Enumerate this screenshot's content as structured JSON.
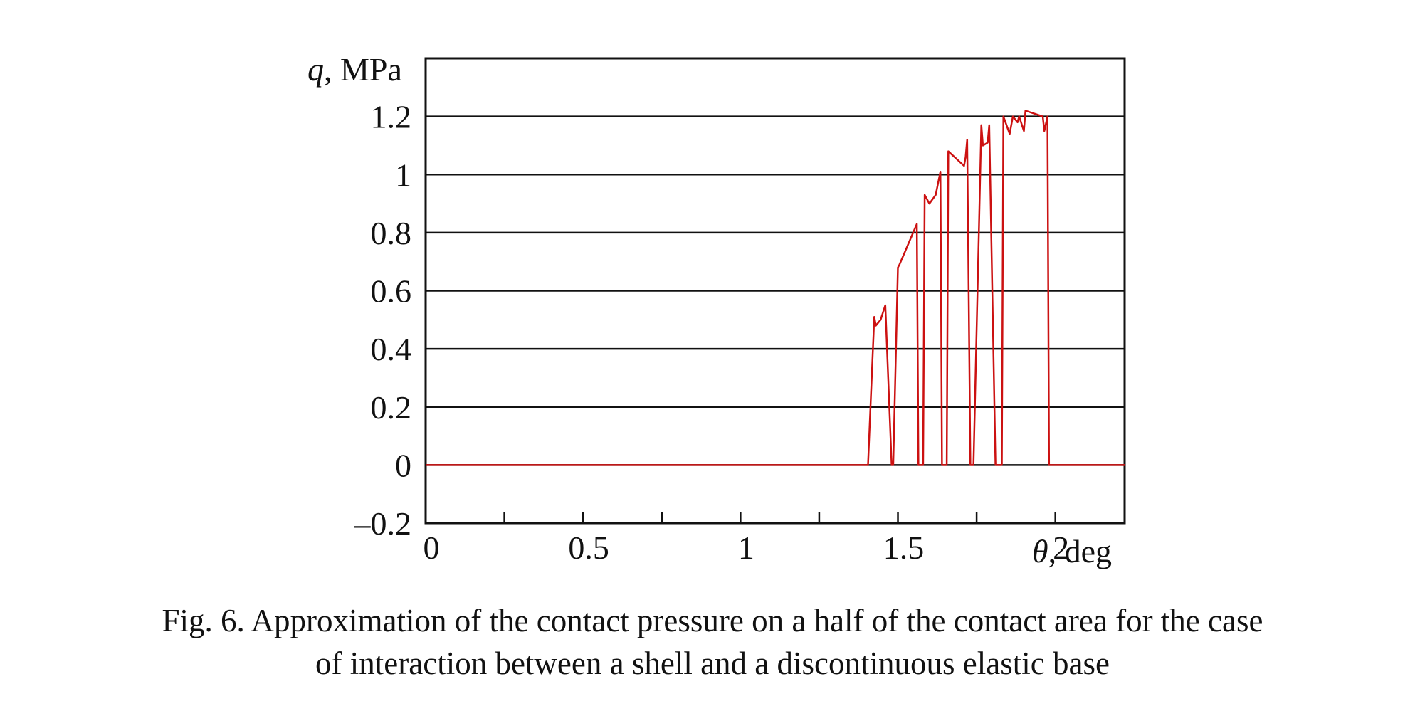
{
  "chart_data": {
    "type": "line",
    "ylabel": {
      "symbol": "q",
      "unit": ", MPa"
    },
    "xlabel": {
      "symbol": "θ",
      "unit": ", deg"
    },
    "xlim": [
      0,
      2.22
    ],
    "ylim": [
      -0.2,
      1.4
    ],
    "x_ticks": [
      0.25,
      0.5,
      0.75,
      1,
      1.25,
      1.5,
      1.75,
      2,
      2.25
    ],
    "x_tick_labels": [
      {
        "x": 0,
        "label": "0"
      },
      {
        "x": 0.5,
        "label": "0.5"
      },
      {
        "x": 1,
        "label": "1"
      },
      {
        "x": 1.5,
        "label": "1.5"
      },
      {
        "x": 2,
        "label": "2"
      }
    ],
    "y_ticks": [
      -0.2,
      0,
      0.2,
      0.4,
      0.6,
      0.8,
      1,
      1.2
    ],
    "y_tick_labels": [
      "–0.2",
      "0",
      "0.2",
      "0.4",
      "0.6",
      "0.8",
      "1",
      "1.2"
    ],
    "grid": "horizontal",
    "line_color": "#cc1111",
    "series": [
      {
        "x": [
          0,
          1.4,
          1.405,
          1.425,
          1.43,
          1.445,
          1.46,
          1.48,
          1.485,
          1.5,
          1.505,
          1.56,
          1.565,
          1.58,
          1.585,
          1.6,
          1.62,
          1.635,
          1.64,
          1.655,
          1.66,
          1.71,
          1.715,
          1.72,
          1.73,
          1.74,
          1.765,
          1.77,
          1.785,
          1.79,
          1.81,
          1.815,
          1.83,
          1.835,
          1.855,
          1.865,
          1.88,
          1.885,
          1.9,
          1.905,
          1.96,
          1.965,
          1.975,
          1.98,
          1.995,
          2.005,
          2.025,
          2.03,
          2.06,
          2.065,
          2.12,
          2.125,
          2.135,
          2.14,
          2.155,
          2.16,
          2.175,
          2.2,
          2.205,
          2.21,
          2.22
        ],
        "y": [
          0,
          0,
          0,
          0.51,
          0.48,
          0.5,
          0.55,
          0,
          0,
          0.68,
          0.69,
          0.83,
          0,
          0,
          0.93,
          0.9,
          0.93,
          1.01,
          0,
          0,
          1.08,
          1.03,
          1.06,
          1.12,
          0,
          0,
          1.17,
          1.1,
          1.11,
          1.17,
          0,
          0,
          0,
          1.2,
          1.14,
          1.2,
          1.18,
          1.2,
          1.15,
          1.22,
          1.2,
          1.15,
          1.2,
          0,
          0,
          0,
          0,
          0,
          0,
          0,
          0,
          0,
          0,
          0,
          0,
          0,
          0,
          0,
          0,
          0,
          0
        ]
      }
    ]
  },
  "caption": {
    "line1": "Fig. 6. Approximation of the contact pressure on a half of the contact area for the case",
    "line2": "of interaction between a shell and a discontinuous elastic base"
  }
}
